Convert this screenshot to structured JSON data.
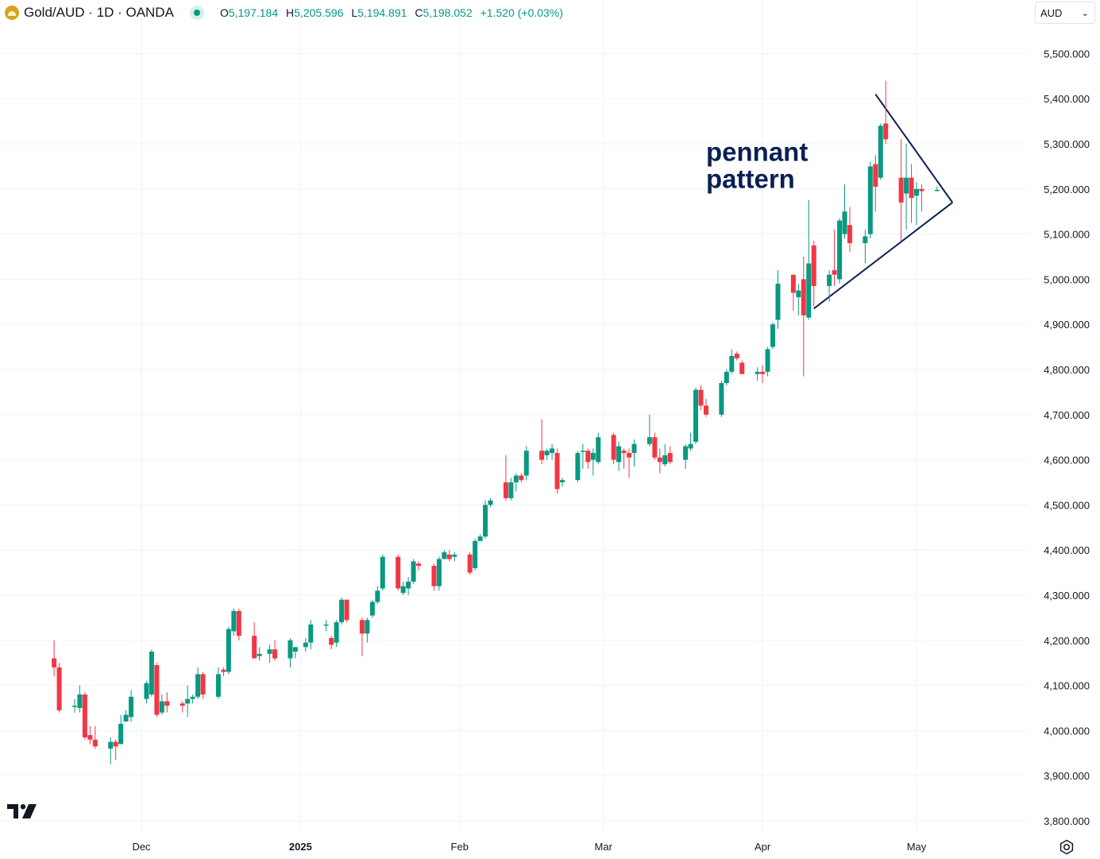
{
  "header": {
    "symbol": "Gold/AUD · 1D · OANDA",
    "open_label": "O",
    "open": "5,197.184",
    "high_label": "H",
    "high": "5,205.596",
    "low_label": "L",
    "low": "5,194.891",
    "close_label": "C",
    "close": "5,198.052",
    "change": "+1.520 (+0.03%)"
  },
  "currency_select": {
    "value": "AUD"
  },
  "icons": [
    "gold-logo-icon",
    "live-dot-icon",
    "chevron-down-icon",
    "tradingview-logo-icon",
    "settings-icon"
  ],
  "colors": {
    "up": "#089981",
    "down": "#f23645",
    "annotation": "#0b1f55",
    "grid": "#f0f3fa",
    "text": "#131722"
  },
  "chart_data": {
    "type": "candlestick",
    "annotation": "pennant pattern",
    "y_axis": {
      "ylim": [
        3800,
        5500
      ],
      "ticks": [
        "3,800.000",
        "3,900.000",
        "4,000.000",
        "4,100.000",
        "4,200.000",
        "4,300.000",
        "4,400.000",
        "4,500.000",
        "4,600.000",
        "4,700.000",
        "4,800.000",
        "4,900.000",
        "5,000.000",
        "5,100.000",
        "5,200.000",
        "5,300.000",
        "5,400.000",
        "5,500.000"
      ]
    },
    "x_axis": {
      "ticks": [
        {
          "label": "Dec",
          "date": "2024-12-01",
          "bold": false
        },
        {
          "label": "2025",
          "date": "2025-01-01",
          "bold": true
        },
        {
          "label": "Feb",
          "date": "2025-02-01",
          "bold": false
        },
        {
          "label": "Mar",
          "date": "2025-03-01",
          "bold": false
        },
        {
          "label": "Apr",
          "date": "2025-04-01",
          "bold": false
        },
        {
          "label": "May",
          "date": "2025-05-01",
          "bold": false
        }
      ]
    },
    "candles": [
      {
        "d": "2024-11-14",
        "o": 4160,
        "h": 4200,
        "l": 4120,
        "c": 4140
      },
      {
        "d": "2024-11-15",
        "o": 4140,
        "h": 4150,
        "l": 4040,
        "c": 4045
      },
      {
        "d": "2024-11-18",
        "o": 4055,
        "h": 4070,
        "l": 4040,
        "c": 4055
      },
      {
        "d": "2024-11-19",
        "o": 4050,
        "h": 4100,
        "l": 4040,
        "c": 4080
      },
      {
        "d": "2024-11-20",
        "o": 4080,
        "h": 4085,
        "l": 3980,
        "c": 3985
      },
      {
        "d": "2024-11-21",
        "o": 3990,
        "h": 4010,
        "l": 3970,
        "c": 3980
      },
      {
        "d": "2024-11-22",
        "o": 3980,
        "h": 4010,
        "l": 3960,
        "c": 3965
      },
      {
        "d": "2024-11-25",
        "o": 3960,
        "h": 3985,
        "l": 3925,
        "c": 3975
      },
      {
        "d": "2024-11-26",
        "o": 3975,
        "h": 3980,
        "l": 3935,
        "c": 3965
      },
      {
        "d": "2024-11-27",
        "o": 3970,
        "h": 4035,
        "l": 3970,
        "c": 4015
      },
      {
        "d": "2024-11-28",
        "o": 4020,
        "h": 4045,
        "l": 4020,
        "c": 4035
      },
      {
        "d": "2024-11-29",
        "o": 4030,
        "h": 4090,
        "l": 4020,
        "c": 4075
      },
      {
        "d": "2024-12-02",
        "o": 4070,
        "h": 4110,
        "l": 4060,
        "c": 4105
      },
      {
        "d": "2024-12-03",
        "o": 4080,
        "h": 4180,
        "l": 4075,
        "c": 4175
      },
      {
        "d": "2024-12-04",
        "o": 4145,
        "h": 4150,
        "l": 4030,
        "c": 4035
      },
      {
        "d": "2024-12-05",
        "o": 4040,
        "h": 4080,
        "l": 4035,
        "c": 4065
      },
      {
        "d": "2024-12-06",
        "o": 4065,
        "h": 4085,
        "l": 4040,
        "c": 4055
      },
      {
        "d": "2024-12-09",
        "o": 4060,
        "h": 4065,
        "l": 4040,
        "c": 4055
      },
      {
        "d": "2024-12-10",
        "o": 4060,
        "h": 4100,
        "l": 4030,
        "c": 4070
      },
      {
        "d": "2024-12-11",
        "o": 4070,
        "h": 4080,
        "l": 4060,
        "c": 4075
      },
      {
        "d": "2024-12-12",
        "o": 4075,
        "h": 4140,
        "l": 4070,
        "c": 4125
      },
      {
        "d": "2024-12-13",
        "o": 4125,
        "h": 4130,
        "l": 4070,
        "c": 4080
      },
      {
        "d": "2024-12-16",
        "o": 4075,
        "h": 4140,
        "l": 4070,
        "c": 4125
      },
      {
        "d": "2024-12-17",
        "o": 4135,
        "h": 4140,
        "l": 4120,
        "c": 4130
      },
      {
        "d": "2024-12-18",
        "o": 4130,
        "h": 4230,
        "l": 4125,
        "c": 4225
      },
      {
        "d": "2024-12-19",
        "o": 4220,
        "h": 4270,
        "l": 4210,
        "c": 4265
      },
      {
        "d": "2024-12-20",
        "o": 4265,
        "h": 4270,
        "l": 4200,
        "c": 4210
      },
      {
        "d": "2024-12-23",
        "o": 4210,
        "h": 4240,
        "l": 4160,
        "c": 4160
      },
      {
        "d": "2024-12-24",
        "o": 4165,
        "h": 4185,
        "l": 4155,
        "c": 4170
      },
      {
        "d": "2024-12-26",
        "o": 4170,
        "h": 4190,
        "l": 4150,
        "c": 4180
      },
      {
        "d": "2024-12-27",
        "o": 4180,
        "h": 4200,
        "l": 4155,
        "c": 4160
      },
      {
        "d": "2024-12-30",
        "o": 4160,
        "h": 4205,
        "l": 4140,
        "c": 4200
      },
      {
        "d": "2024-12-31",
        "o": 4175,
        "h": 4185,
        "l": 4160,
        "c": 4185
      },
      {
        "d": "2025-01-02",
        "o": 4185,
        "h": 4205,
        "l": 4175,
        "c": 4195
      },
      {
        "d": "2025-01-03",
        "o": 4195,
        "h": 4245,
        "l": 4180,
        "c": 4235
      },
      {
        "d": "2025-01-06",
        "o": 4235,
        "h": 4245,
        "l": 4220,
        "c": 4235
      },
      {
        "d": "2025-01-07",
        "o": 4205,
        "h": 4210,
        "l": 4180,
        "c": 4190
      },
      {
        "d": "2025-01-08",
        "o": 4195,
        "h": 4245,
        "l": 4185,
        "c": 4240
      },
      {
        "d": "2025-01-09",
        "o": 4240,
        "h": 4295,
        "l": 4235,
        "c": 4290
      },
      {
        "d": "2025-01-10",
        "o": 4290,
        "h": 4290,
        "l": 4240,
        "c": 4245
      },
      {
        "d": "2025-01-13",
        "o": 4245,
        "h": 4250,
        "l": 4165,
        "c": 4215
      },
      {
        "d": "2025-01-14",
        "o": 4215,
        "h": 4250,
        "l": 4195,
        "c": 4245
      },
      {
        "d": "2025-01-15",
        "o": 4255,
        "h": 4290,
        "l": 4250,
        "c": 4285
      },
      {
        "d": "2025-01-16",
        "o": 4285,
        "h": 4320,
        "l": 4280,
        "c": 4310
      },
      {
        "d": "2025-01-17",
        "o": 4315,
        "h": 4390,
        "l": 4310,
        "c": 4385
      },
      {
        "d": "2025-01-20",
        "o": 4385,
        "h": 4390,
        "l": 4310,
        "c": 4315
      },
      {
        "d": "2025-01-21",
        "o": 4305,
        "h": 4330,
        "l": 4300,
        "c": 4320
      },
      {
        "d": "2025-01-22",
        "o": 4315,
        "h": 4340,
        "l": 4300,
        "c": 4330
      },
      {
        "d": "2025-01-23",
        "o": 4330,
        "h": 4380,
        "l": 4325,
        "c": 4375
      },
      {
        "d": "2025-01-24",
        "o": 4370,
        "h": 4375,
        "l": 4355,
        "c": 4365
      },
      {
        "d": "2025-01-27",
        "o": 4365,
        "h": 4370,
        "l": 4310,
        "c": 4320
      },
      {
        "d": "2025-01-28",
        "o": 4320,
        "h": 4385,
        "l": 4310,
        "c": 4380
      },
      {
        "d": "2025-01-29",
        "o": 4380,
        "h": 4400,
        "l": 4380,
        "c": 4395
      },
      {
        "d": "2025-01-30",
        "o": 4390,
        "h": 4400,
        "l": 4375,
        "c": 4380
      },
      {
        "d": "2025-01-31",
        "o": 4385,
        "h": 4395,
        "l": 4375,
        "c": 4390
      },
      {
        "d": "2025-02-03",
        "o": 4390,
        "h": 4395,
        "l": 4345,
        "c": 4350
      },
      {
        "d": "2025-02-04",
        "o": 4360,
        "h": 4425,
        "l": 4355,
        "c": 4420
      },
      {
        "d": "2025-02-05",
        "o": 4420,
        "h": 4435,
        "l": 4420,
        "c": 4430
      },
      {
        "d": "2025-02-06",
        "o": 4430,
        "h": 4510,
        "l": 4425,
        "c": 4500
      },
      {
        "d": "2025-02-07",
        "o": 4500,
        "h": 4515,
        "l": 4495,
        "c": 4510
      },
      {
        "d": "2025-02-10",
        "o": 4550,
        "h": 4610,
        "l": 4510,
        "c": 4515
      },
      {
        "d": "2025-02-11",
        "o": 4515,
        "h": 4560,
        "l": 4510,
        "c": 4550
      },
      {
        "d": "2025-02-12",
        "o": 4550,
        "h": 4570,
        "l": 4530,
        "c": 4565
      },
      {
        "d": "2025-02-13",
        "o": 4565,
        "h": 4570,
        "l": 4550,
        "c": 4555
      },
      {
        "d": "2025-02-14",
        "o": 4565,
        "h": 4630,
        "l": 4555,
        "c": 4620
      },
      {
        "d": "2025-02-17",
        "o": 4620,
        "h": 4690,
        "l": 4590,
        "c": 4600
      },
      {
        "d": "2025-02-18",
        "o": 4610,
        "h": 4625,
        "l": 4600,
        "c": 4620
      },
      {
        "d": "2025-02-19",
        "o": 4615,
        "h": 4635,
        "l": 4600,
        "c": 4625
      },
      {
        "d": "2025-02-20",
        "o": 4615,
        "h": 4625,
        "l": 4525,
        "c": 4535
      },
      {
        "d": "2025-02-21",
        "o": 4550,
        "h": 4560,
        "l": 4540,
        "c": 4555
      },
      {
        "d": "2025-02-24",
        "o": 4555,
        "h": 4620,
        "l": 4550,
        "c": 4615
      },
      {
        "d": "2025-02-25",
        "o": 4620,
        "h": 4635,
        "l": 4580,
        "c": 4620
      },
      {
        "d": "2025-02-26",
        "o": 4620,
        "h": 4625,
        "l": 4580,
        "c": 4595
      },
      {
        "d": "2025-02-27",
        "o": 4600,
        "h": 4625,
        "l": 4565,
        "c": 4615
      },
      {
        "d": "2025-02-28",
        "o": 4595,
        "h": 4660,
        "l": 4590,
        "c": 4650
      },
      {
        "d": "2025-03-03",
        "o": 4655,
        "h": 4660,
        "l": 4590,
        "c": 4600
      },
      {
        "d": "2025-03-04",
        "o": 4595,
        "h": 4640,
        "l": 4575,
        "c": 4630
      },
      {
        "d": "2025-03-05",
        "o": 4620,
        "h": 4625,
        "l": 4580,
        "c": 4615
      },
      {
        "d": "2025-03-06",
        "o": 4615,
        "h": 4625,
        "l": 4560,
        "c": 4605
      },
      {
        "d": "2025-03-07",
        "o": 4615,
        "h": 4645,
        "l": 4585,
        "c": 4635
      },
      {
        "d": "2025-03-10",
        "o": 4635,
        "h": 4700,
        "l": 4630,
        "c": 4650
      },
      {
        "d": "2025-03-11",
        "o": 4650,
        "h": 4660,
        "l": 4600,
        "c": 4605
      },
      {
        "d": "2025-03-12",
        "o": 4605,
        "h": 4625,
        "l": 4570,
        "c": 4595
      },
      {
        "d": "2025-03-13",
        "o": 4590,
        "h": 4635,
        "l": 4585,
        "c": 4610
      },
      {
        "d": "2025-03-14",
        "o": 4615,
        "h": 4630,
        "l": 4590,
        "c": 4595
      },
      {
        "d": "2025-03-17",
        "o": 4600,
        "h": 4635,
        "l": 4580,
        "c": 4630
      },
      {
        "d": "2025-03-18",
        "o": 4625,
        "h": 4660,
        "l": 4620,
        "c": 4635
      },
      {
        "d": "2025-03-19",
        "o": 4640,
        "h": 4760,
        "l": 4635,
        "c": 4755
      },
      {
        "d": "2025-03-20",
        "o": 4755,
        "h": 4765,
        "l": 4710,
        "c": 4720
      },
      {
        "d": "2025-03-21",
        "o": 4720,
        "h": 4735,
        "l": 4695,
        "c": 4700
      },
      {
        "d": "2025-03-24",
        "o": 4700,
        "h": 4775,
        "l": 4695,
        "c": 4770
      },
      {
        "d": "2025-03-25",
        "o": 4770,
        "h": 4800,
        "l": 4765,
        "c": 4795
      },
      {
        "d": "2025-03-26",
        "o": 4795,
        "h": 4845,
        "l": 4790,
        "c": 4830
      },
      {
        "d": "2025-03-27",
        "o": 4835,
        "h": 4840,
        "l": 4820,
        "c": 4825
      },
      {
        "d": "2025-03-28",
        "o": 4815,
        "h": 4820,
        "l": 4790,
        "c": 4790
      },
      {
        "d": "2025-03-31",
        "o": 4790,
        "h": 4805,
        "l": 4775,
        "c": 4795
      },
      {
        "d": "2025-04-01",
        "o": 4795,
        "h": 4810,
        "l": 4770,
        "c": 4790
      },
      {
        "d": "2025-04-02",
        "o": 4795,
        "h": 4850,
        "l": 4785,
        "c": 4845
      },
      {
        "d": "2025-04-03",
        "o": 4850,
        "h": 4905,
        "l": 4845,
        "c": 4900
      },
      {
        "d": "2025-04-04",
        "o": 4910,
        "h": 5020,
        "l": 4890,
        "c": 4990
      },
      {
        "d": "2025-04-07",
        "o": 5010,
        "h": 5010,
        "l": 4930,
        "c": 4970
      },
      {
        "d": "2025-04-08",
        "o": 4960,
        "h": 4990,
        "l": 4920,
        "c": 4975
      },
      {
        "d": "2025-04-09",
        "o": 5000,
        "h": 5050,
        "l": 4785,
        "c": 4920
      },
      {
        "d": "2025-04-10",
        "o": 4915,
        "h": 5175,
        "l": 4910,
        "c": 5035
      },
      {
        "d": "2025-04-11",
        "o": 5075,
        "h": 5085,
        "l": 4940,
        "c": 4985
      },
      {
        "d": "2025-04-14",
        "o": 4985,
        "h": 5020,
        "l": 4950,
        "c": 5010
      },
      {
        "d": "2025-04-15",
        "o": 5020,
        "h": 5110,
        "l": 4985,
        "c": 5010
      },
      {
        "d": "2025-04-16",
        "o": 5000,
        "h": 5135,
        "l": 4990,
        "c": 5130
      },
      {
        "d": "2025-04-17",
        "o": 5100,
        "h": 5210,
        "l": 5090,
        "c": 5150
      },
      {
        "d": "2025-04-18",
        "o": 5120,
        "h": 5160,
        "l": 5060,
        "c": 5080
      },
      {
        "d": "2025-04-21",
        "o": 5080,
        "h": 5110,
        "l": 5035,
        "c": 5095
      },
      {
        "d": "2025-04-22",
        "o": 5100,
        "h": 5260,
        "l": 5090,
        "c": 5250
      },
      {
        "d": "2025-04-23",
        "o": 5255,
        "h": 5275,
        "l": 5150,
        "c": 5205
      },
      {
        "d": "2025-04-24",
        "o": 5225,
        "h": 5345,
        "l": 5220,
        "c": 5340
      },
      {
        "d": "2025-04-25",
        "o": 5345,
        "h": 5440,
        "l": 5300,
        "c": 5310
      },
      {
        "d": "2025-04-28",
        "o": 5225,
        "h": 5310,
        "l": 5085,
        "c": 5170
      },
      {
        "d": "2025-04-29",
        "o": 5190,
        "h": 5300,
        "l": 5110,
        "c": 5225
      },
      {
        "d": "2025-04-30",
        "o": 5225,
        "h": 5255,
        "l": 5125,
        "c": 5180
      },
      {
        "d": "2025-05-01",
        "o": 5185,
        "h": 5215,
        "l": 5120,
        "c": 5200
      },
      {
        "d": "2025-05-02",
        "o": 5200,
        "h": 5210,
        "l": 5150,
        "c": 5195
      },
      {
        "d": "2025-05-05",
        "o": 5197,
        "h": 5206,
        "l": 5195,
        "c": 5198
      }
    ],
    "trendlines": [
      {
        "name": "pennant-upper-line",
        "from": {
          "d": "2025-04-23",
          "y": 5410
        },
        "to": {
          "d": "2025-05-08",
          "y": 5170
        }
      },
      {
        "name": "pennant-lower-line",
        "from": {
          "d": "2025-04-11",
          "y": 4935
        },
        "to": {
          "d": "2025-05-08",
          "y": 5170
        }
      }
    ]
  }
}
